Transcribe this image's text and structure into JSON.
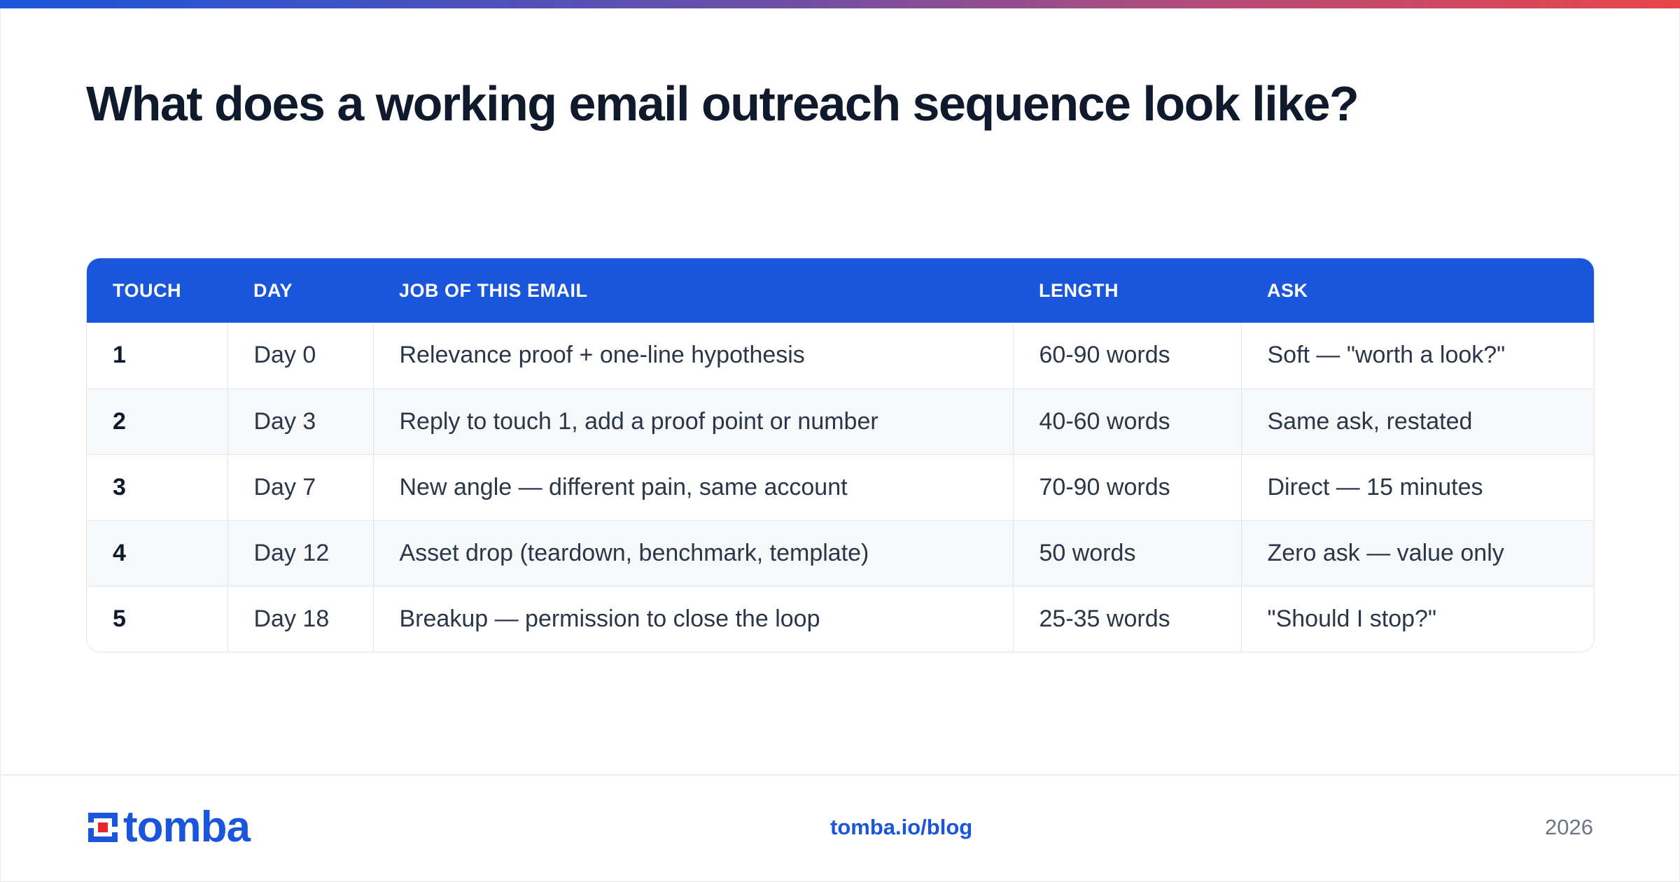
{
  "page": {
    "title": "What does a working email outreach sequence look like?"
  },
  "table": {
    "headers": [
      "TOUCH",
      "DAY",
      "JOB OF THIS EMAIL",
      "LENGTH",
      "ASK"
    ],
    "rows": [
      [
        "1",
        "Day 0",
        "Relevance proof + one-line hypothesis",
        "60-90 words",
        "Soft — \"worth a look?\""
      ],
      [
        "2",
        "Day 3",
        "Reply to touch 1, add a proof point or number",
        "40-60 words",
        "Same ask, restated"
      ],
      [
        "3",
        "Day 7",
        "New angle — different pain, same account",
        "70-90 words",
        "Direct — 15 minutes"
      ],
      [
        "4",
        "Day 12",
        "Asset drop (teardown, benchmark, template)",
        "50 words",
        "Zero ask — value only"
      ],
      [
        "5",
        "Day 18",
        "Breakup — permission to close the loop",
        "25-35 words",
        "\"Should I stop?\""
      ]
    ]
  },
  "footer": {
    "logo_text": "tomba",
    "link": "tomba.io/blog",
    "year": "2026"
  },
  "colors": {
    "accent": "#1a56db",
    "title": "#0f1b2d",
    "stripe": "#f7f8fa",
    "logo_red": "#e8262d"
  },
  "icons": {
    "logo_mark": "tomba-logo-icon"
  }
}
